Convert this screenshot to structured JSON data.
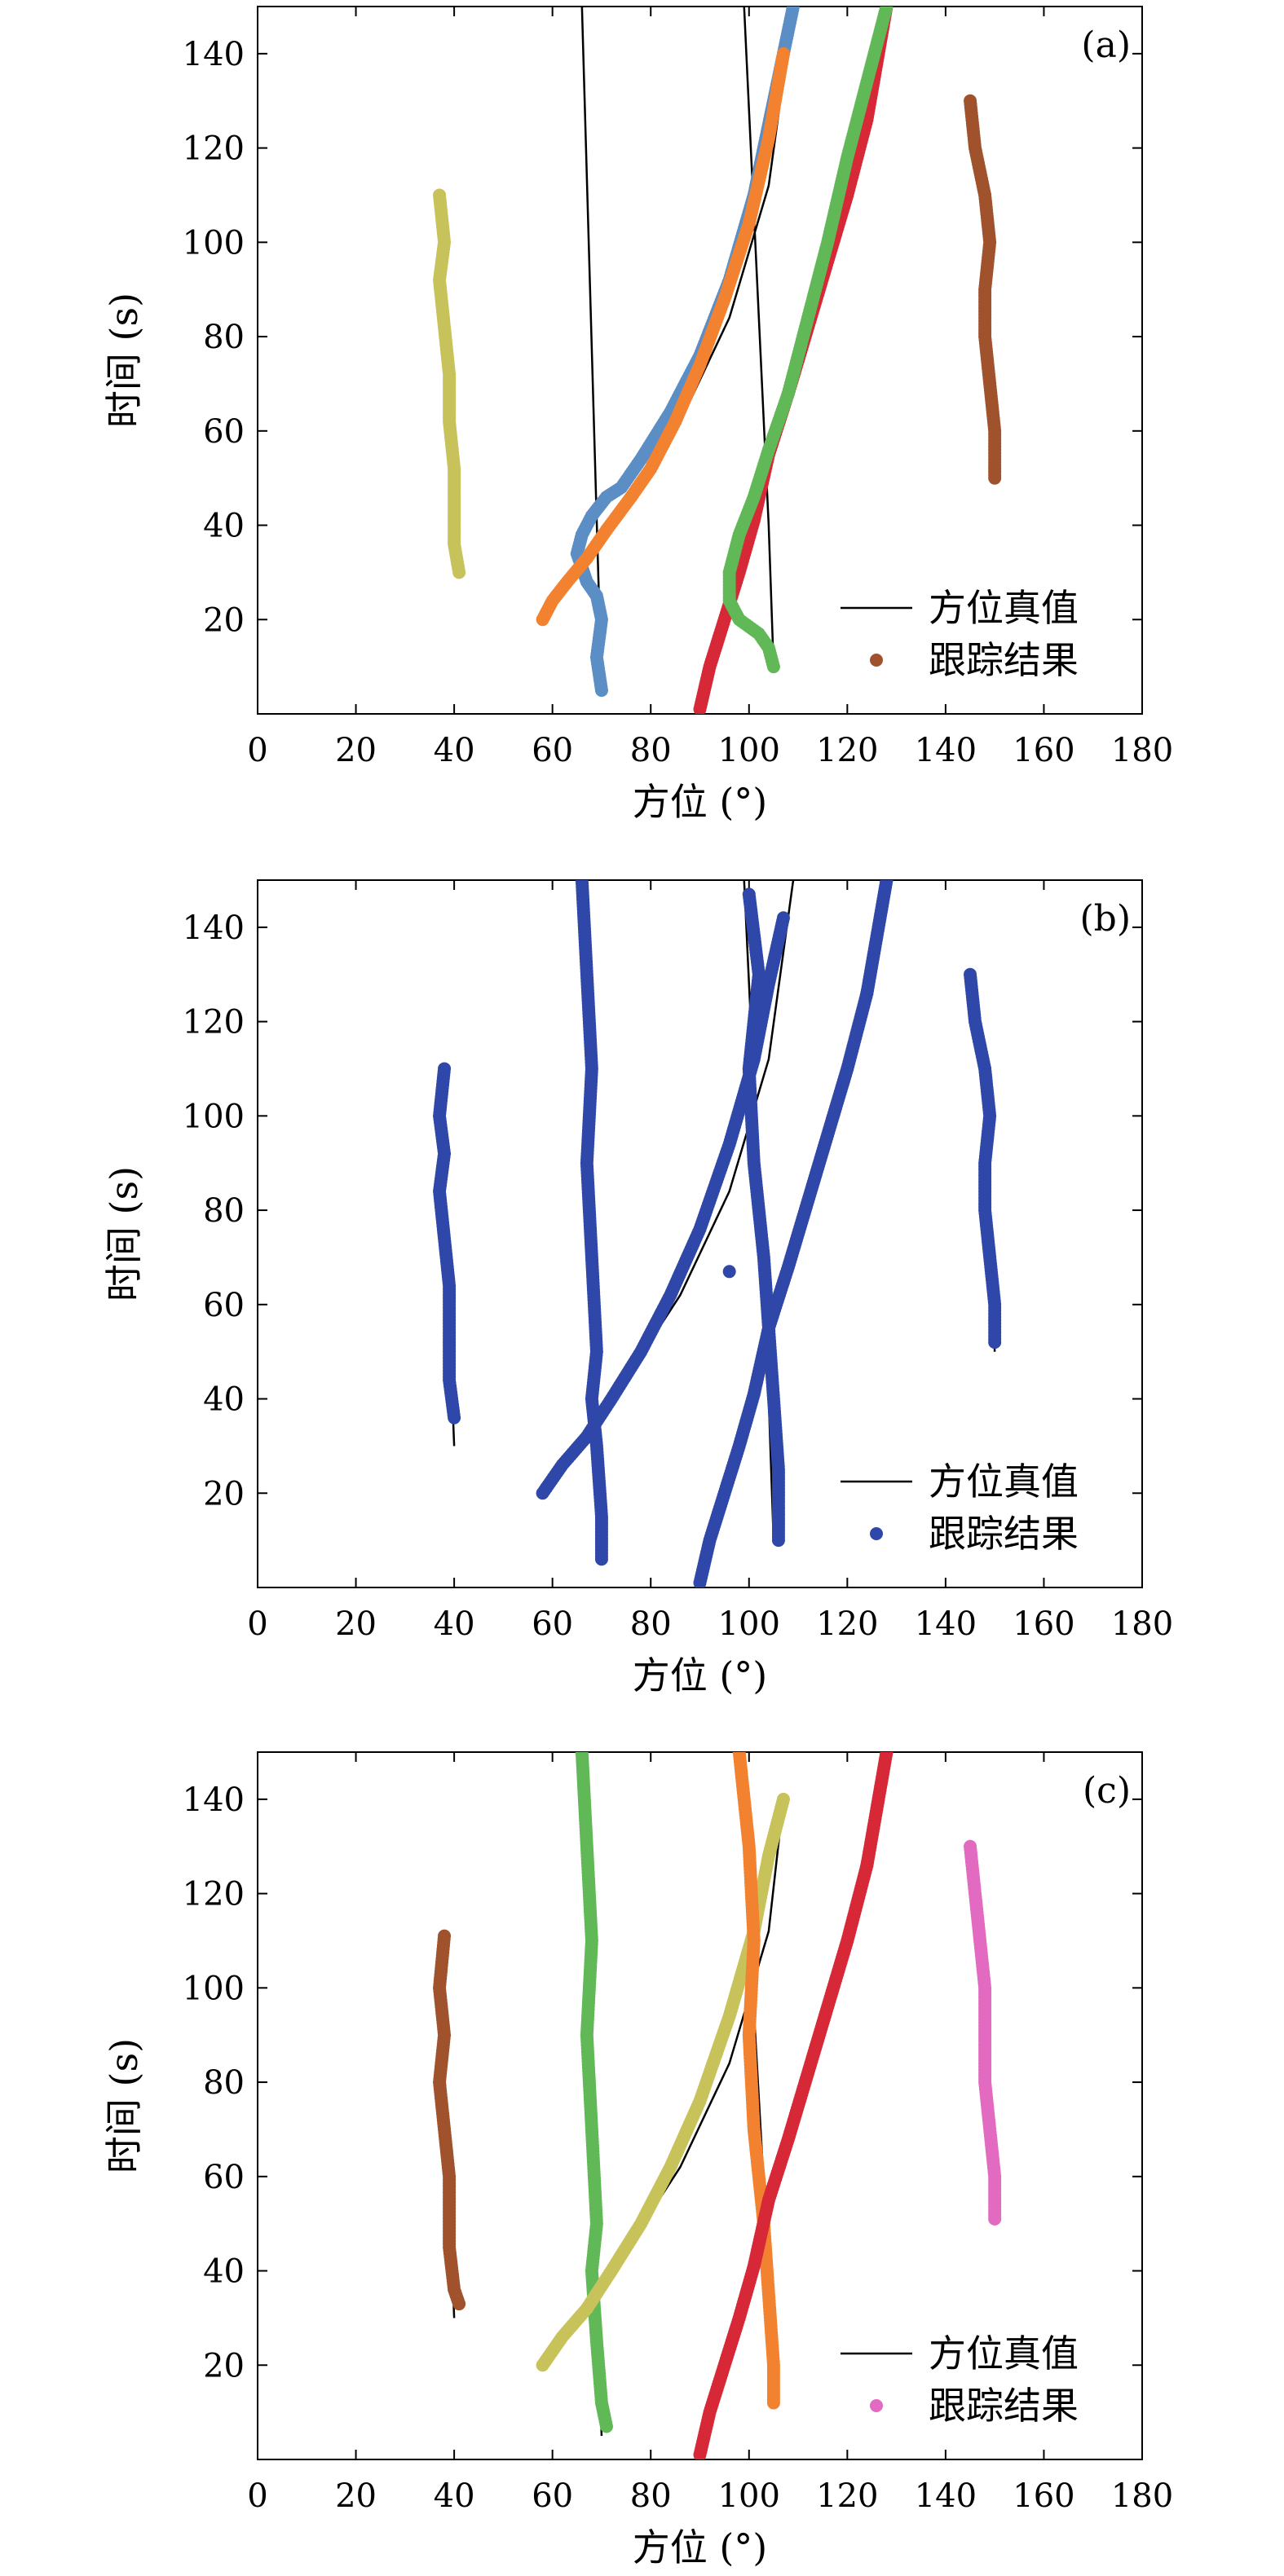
{
  "chart_data": [
    {
      "type": "scatter",
      "panel_label": "(a)",
      "xlabel": "方位 (°)",
      "ylabel": "时间 (s)",
      "xlim": [
        0,
        180
      ],
      "ylim": [
        0,
        150
      ],
      "xticks": [
        0,
        20,
        40,
        60,
        80,
        100,
        120,
        140,
        160,
        180
      ],
      "yticks": [
        20,
        40,
        60,
        80,
        100,
        120,
        140
      ],
      "legend": {
        "position": "bottom-right",
        "line_label": "方位真值",
        "point_label": "跟踪结果",
        "point_color": "#a0522d"
      },
      "truth_lines": [
        {
          "x": [
            37,
            40
          ],
          "y": [
            110,
            30
          ]
        },
        {
          "x": [
            66,
            70
          ],
          "y": [
            150,
            5
          ]
        },
        {
          "x": [
            58,
            70,
            76,
            86,
            96,
            104,
            109
          ],
          "y": [
            20,
            36,
            46,
            62,
            84,
            112,
            150
          ]
        },
        {
          "x": [
            99,
            104,
            105
          ],
          "y": [
            150,
            40,
            10
          ]
        },
        {
          "x": [
            90,
            95,
            104,
            110,
            116,
            122,
            128
          ],
          "y": [
            1,
            20,
            55,
            72,
            96,
            122,
            150
          ]
        },
        {
          "x": [
            145,
            148,
            150
          ],
          "y": [
            130,
            100,
            50
          ]
        }
      ],
      "series": [
        {
          "color": "#c8c25a",
          "x": [
            37,
            38,
            37,
            38,
            39,
            39,
            40,
            40,
            40,
            41
          ],
          "y": [
            110,
            100,
            92,
            82,
            72,
            62,
            52,
            44,
            36,
            30
          ]
        },
        {
          "color": "#5b8ec4",
          "x": [
            70,
            69,
            70,
            69,
            67,
            65,
            66,
            68,
            71,
            74,
            78,
            84,
            90,
            96,
            101,
            105,
            109
          ],
          "y": [
            5,
            12,
            20,
            25,
            28,
            34,
            38,
            42,
            46,
            48,
            54,
            64,
            76,
            92,
            110,
            130,
            150
          ]
        },
        {
          "color": "#f28230",
          "x": [
            58,
            60,
            63,
            67,
            71,
            76,
            80,
            85,
            90,
            95,
            100,
            104,
            107
          ],
          "y": [
            20,
            24,
            28,
            33,
            39,
            46,
            52,
            62,
            74,
            88,
            104,
            122,
            140
          ]
        },
        {
          "color": "#d62836",
          "x": [
            90,
            92,
            95,
            98,
            101,
            104,
            108,
            112,
            116,
            120,
            124,
            128
          ],
          "y": [
            1,
            10,
            20,
            30,
            41,
            55,
            68,
            82,
            96,
            110,
            126,
            150
          ]
        },
        {
          "color": "#60b857",
          "x": [
            105,
            104,
            102,
            98,
            96,
            96,
            98,
            101,
            104,
            108,
            112,
            116,
            120,
            124,
            128
          ],
          "y": [
            10,
            14,
            17,
            20,
            24,
            30,
            38,
            46,
            56,
            68,
            84,
            100,
            118,
            134,
            150
          ]
        },
        {
          "color": "#a0522d",
          "x": [
            145,
            146,
            148,
            149,
            148,
            148,
            149,
            150,
            150
          ],
          "y": [
            130,
            120,
            110,
            100,
            90,
            80,
            70,
            60,
            50
          ]
        }
      ]
    },
    {
      "type": "scatter",
      "panel_label": "(b)",
      "xlabel": "方位 (°)",
      "ylabel": "时间 (s)",
      "xlim": [
        0,
        180
      ],
      "ylim": [
        0,
        150
      ],
      "xticks": [
        0,
        20,
        40,
        60,
        80,
        100,
        120,
        140,
        160,
        180
      ],
      "yticks": [
        20,
        40,
        60,
        80,
        100,
        120,
        140
      ],
      "legend": {
        "position": "bottom-right",
        "line_label": "方位真值",
        "point_label": "跟踪结果",
        "point_color": "#2e47a8"
      },
      "truth_lines": [
        {
          "x": [
            37,
            40
          ],
          "y": [
            110,
            30
          ]
        },
        {
          "x": [
            66,
            70
          ],
          "y": [
            150,
            5
          ]
        },
        {
          "x": [
            58,
            70,
            76,
            86,
            96,
            104,
            109
          ],
          "y": [
            20,
            36,
            46,
            62,
            84,
            112,
            150
          ]
        },
        {
          "x": [
            99,
            104,
            105
          ],
          "y": [
            150,
            40,
            10
          ]
        },
        {
          "x": [
            90,
            95,
            104,
            110,
            116,
            122,
            128
          ],
          "y": [
            1,
            20,
            55,
            72,
            96,
            122,
            150
          ]
        },
        {
          "x": [
            145,
            148,
            150
          ],
          "y": [
            130,
            100,
            50
          ]
        }
      ],
      "series": [
        {
          "color": "#2e47a8",
          "x": [
            38,
            37,
            38,
            37,
            38,
            39,
            39,
            39,
            40
          ],
          "y": [
            110,
            100,
            92,
            84,
            74,
            64,
            54,
            44,
            36
          ]
        },
        {
          "color": "#2e47a8",
          "x": [
            66,
            67,
            68,
            67,
            68,
            69,
            68,
            69,
            70,
            70
          ],
          "y": [
            150,
            130,
            110,
            90,
            70,
            50,
            40,
            30,
            15,
            6
          ]
        },
        {
          "color": "#2e47a8",
          "x": [
            58,
            62,
            67,
            72,
            78,
            84,
            90,
            96,
            101,
            104,
            107
          ],
          "y": [
            20,
            26,
            32,
            40,
            50,
            62,
            76,
            94,
            112,
            128,
            142
          ]
        },
        {
          "color": "#2e47a8",
          "x": [
            100,
            102,
            100,
            101,
            103,
            104,
            105,
            106,
            106
          ],
          "y": [
            147,
            130,
            110,
            90,
            70,
            55,
            40,
            25,
            10
          ]
        },
        {
          "color": "#2e47a8",
          "x": [
            90,
            92,
            95,
            98,
            101,
            104,
            108,
            112,
            116,
            120,
            124,
            128
          ],
          "y": [
            1,
            10,
            20,
            30,
            41,
            55,
            68,
            82,
            96,
            110,
            126,
            150
          ]
        },
        {
          "color": "#2e47a8",
          "x": [
            145,
            146,
            148,
            149,
            148,
            148,
            149,
            150,
            150
          ],
          "y": [
            130,
            120,
            110,
            100,
            90,
            80,
            70,
            60,
            52
          ]
        },
        {
          "color": "#2e47a8",
          "x": [
            96
          ],
          "y": [
            67
          ]
        }
      ]
    },
    {
      "type": "scatter",
      "panel_label": "(c)",
      "xlabel": "方位 (°)",
      "ylabel": "时间 (s)",
      "xlim": [
        0,
        180
      ],
      "ylim": [
        0,
        150
      ],
      "xticks": [
        0,
        20,
        40,
        60,
        80,
        100,
        120,
        140,
        160,
        180
      ],
      "yticks": [
        20,
        40,
        60,
        80,
        100,
        120,
        140
      ],
      "legend": {
        "position": "bottom-right",
        "line_label": "方位真值",
        "point_label": "跟踪结果",
        "point_color": "#e26ac0"
      },
      "truth_lines": [
        {
          "x": [
            37,
            40
          ],
          "y": [
            110,
            30
          ]
        },
        {
          "x": [
            66,
            70
          ],
          "y": [
            150,
            5
          ]
        },
        {
          "x": [
            58,
            70,
            76,
            86,
            96,
            104,
            107
          ],
          "y": [
            20,
            36,
            46,
            62,
            84,
            112,
            140
          ]
        },
        {
          "x": [
            98,
            104,
            105
          ],
          "y": [
            150,
            40,
            12
          ]
        },
        {
          "x": [
            90,
            95,
            104,
            110,
            116,
            122,
            128
          ],
          "y": [
            1,
            20,
            55,
            72,
            96,
            122,
            150
          ]
        },
        {
          "x": [
            145,
            148,
            150
          ],
          "y": [
            130,
            100,
            50
          ]
        }
      ],
      "series": [
        {
          "color": "#a0522d",
          "x": [
            38,
            37,
            38,
            37,
            38,
            39,
            39,
            40,
            41
          ],
          "y": [
            111,
            100,
            90,
            80,
            70,
            60,
            45,
            36,
            33
          ]
        },
        {
          "color": "#60b857",
          "x": [
            66,
            67,
            68,
            67,
            68,
            69,
            68,
            69,
            70,
            71
          ],
          "y": [
            150,
            130,
            110,
            90,
            70,
            50,
            40,
            25,
            12,
            7
          ]
        },
        {
          "color": "#c8c25a",
          "x": [
            58,
            62,
            67,
            72,
            78,
            84,
            90,
            96,
            101,
            104,
            107
          ],
          "y": [
            20,
            26,
            32,
            40,
            50,
            62,
            76,
            94,
            112,
            128,
            140
          ]
        },
        {
          "color": "#f28230",
          "x": [
            98,
            100,
            101,
            100,
            101,
            103,
            104,
            105,
            105
          ],
          "y": [
            150,
            130,
            110,
            90,
            70,
            50,
            35,
            20,
            12
          ]
        },
        {
          "color": "#d62836",
          "x": [
            90,
            92,
            95,
            98,
            101,
            104,
            108,
            112,
            116,
            120,
            124,
            128
          ],
          "y": [
            1,
            10,
            20,
            30,
            41,
            55,
            68,
            82,
            96,
            110,
            126,
            150
          ]
        },
        {
          "color": "#e26ac0",
          "x": [
            145,
            146,
            148,
            148,
            148,
            149,
            150,
            150
          ],
          "y": [
            130,
            120,
            100,
            90,
            80,
            70,
            60,
            51
          ]
        }
      ]
    }
  ]
}
